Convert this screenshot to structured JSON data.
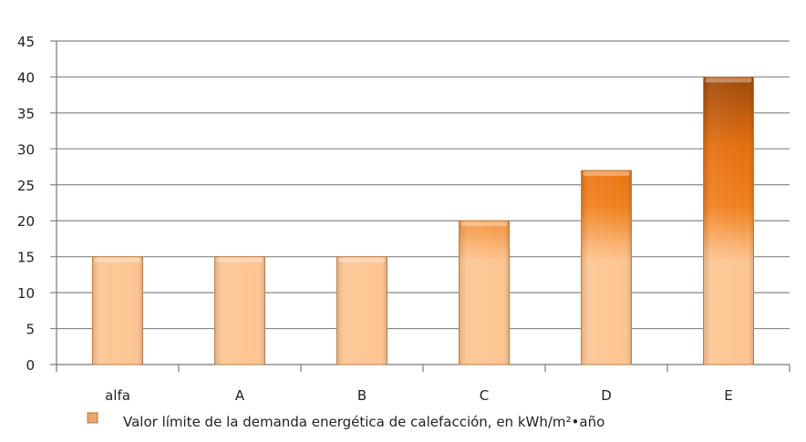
{
  "chart_data": {
    "type": "bar",
    "title": "",
    "xlabel": "",
    "ylabel": "",
    "categories": [
      "alfa",
      "A",
      "B",
      "C",
      "D",
      "E"
    ],
    "series": [
      {
        "name": "Valor límite de la demanda energética de calefacción, en kWh/m²•año",
        "values": [
          15,
          15,
          15,
          20,
          27,
          40
        ]
      }
    ],
    "ylim": [
      0,
      45
    ],
    "yticks": [
      0,
      5,
      10,
      15,
      20,
      25,
      30,
      35,
      40,
      45
    ],
    "grid": true,
    "legend_position": "bottom",
    "colors": {
      "light": "#fdc896",
      "mid": "#ee7a14",
      "dark": "#9c4608",
      "grid": "#888888"
    }
  }
}
